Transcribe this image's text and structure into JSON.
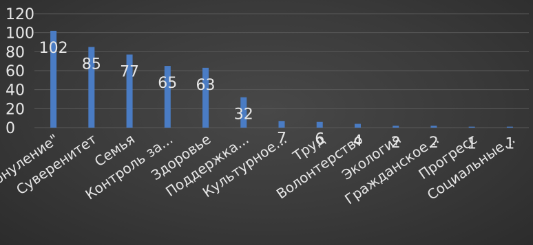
{
  "chart_data": {
    "type": "bar",
    "categories": [
      "Обнуление\"",
      "Суверенитет",
      "Семья",
      "Контроль за...",
      "Здоровье",
      "Поддержка...",
      "Культурное...",
      "Труд",
      "Волонтерство",
      "Экология",
      "Гражданское...",
      "Прогресс",
      "Социальные..."
    ],
    "series": [
      {
        "values": [
          102,
          85,
          77,
          65,
          63,
          32,
          7,
          6,
          4,
          2,
          2,
          1,
          1
        ]
      }
    ],
    "data_labels": [
      "102",
      "85",
      "77",
      "65",
      "63",
      "32",
      "7",
      "6",
      "4",
      "2",
      "2",
      "1",
      "1"
    ],
    "yticks": [
      "0",
      "20",
      "40",
      "60",
      "80",
      "100",
      "120"
    ],
    "ylim": [
      0,
      120
    ],
    "grid": true,
    "legend": "none",
    "title": "",
    "xlabel": "",
    "ylabel": "",
    "colors": {
      "bar": "#4a7cc4",
      "text": "#e6e6e6",
      "grid": "#5a5a5a"
    }
  }
}
